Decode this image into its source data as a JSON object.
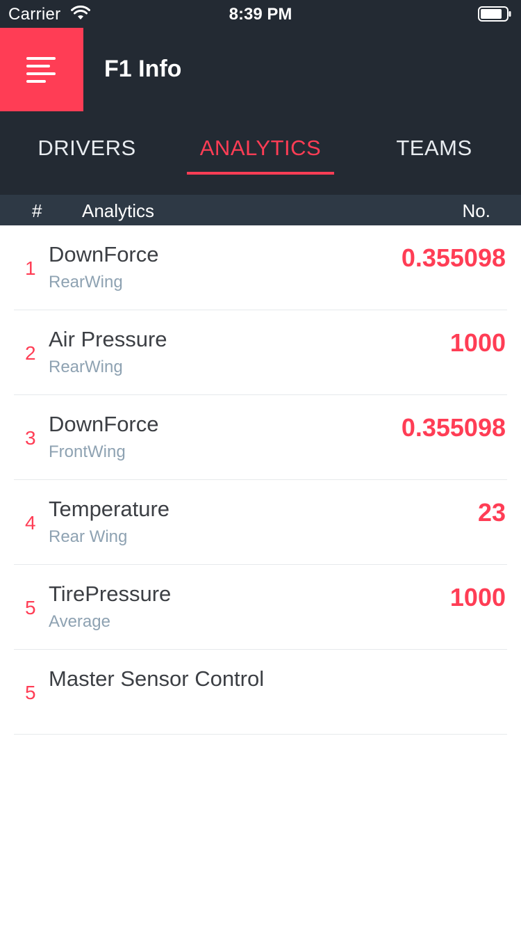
{
  "status_bar": {
    "carrier": "Carrier",
    "time": "8:39 PM",
    "wifi_icon": "wifi-icon",
    "battery_icon": "battery-icon"
  },
  "header": {
    "menu_icon": "menu-icon",
    "title": "F1 Info",
    "accent_color": "#ff3d55",
    "background_color": "#232a33"
  },
  "tabs": [
    {
      "label": "DRIVERS",
      "active": false
    },
    {
      "label": "ANALYTICS",
      "active": true
    },
    {
      "label": "TEAMS",
      "active": false
    }
  ],
  "table": {
    "headers": {
      "num": "#",
      "name": "Analytics",
      "value": "No."
    },
    "rows": [
      {
        "index": "1",
        "name": "DownForce",
        "sub": "RearWing",
        "value": "0.355098"
      },
      {
        "index": "2",
        "name": "Air Pressure",
        "sub": "RearWing",
        "value": "1000"
      },
      {
        "index": "3",
        "name": "DownForce",
        "sub": "FrontWing",
        "value": "0.355098"
      },
      {
        "index": "4",
        "name": "Temperature",
        "sub": "Rear Wing",
        "value": "23"
      },
      {
        "index": "5",
        "name": "TirePressure",
        "sub": "Average",
        "value": "1000"
      },
      {
        "index": "5",
        "name": "Master Sensor Control",
        "sub": "",
        "value": ""
      }
    ]
  }
}
